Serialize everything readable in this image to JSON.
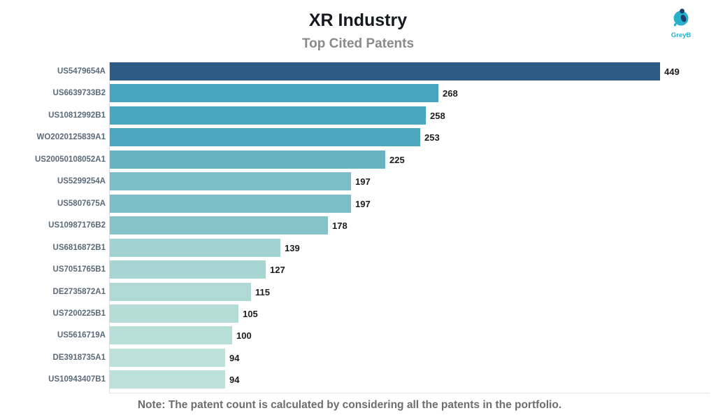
{
  "header": {
    "title": "XR Industry",
    "subtitle": "Top Cited Patents"
  },
  "logo": {
    "text": "GreyB",
    "teal": "#27b2ca",
    "navy": "#1d3f6d"
  },
  "note": "Note: The patent count is calculated by considering all the patents in the portfolio.",
  "chart_data": {
    "type": "bar",
    "orientation": "horizontal",
    "title": "XR Industry",
    "subtitle": "Top Cited Patents",
    "categories": [
      "US5479654A",
      "US6639733B2",
      "US10812992B1",
      "WO2020125839A1",
      "US20050108052A1",
      "US5299254A",
      "US5807675A",
      "US10987176B2",
      "US6816872B1",
      "US7051765B1",
      "DE2735872A1",
      "US7200225B1",
      "US5616719A",
      "DE3918735A1",
      "US10943407B1"
    ],
    "values": [
      449,
      268,
      258,
      253,
      225,
      197,
      197,
      178,
      139,
      127,
      115,
      105,
      100,
      94,
      94
    ],
    "bar_colors": [
      "#2d5a87",
      "#49a5bf",
      "#4ba6bf",
      "#4da7bf",
      "#68b3c2",
      "#7bbdc8",
      "#7bbdc8",
      "#85c3c9",
      "#9fd2d0",
      "#a7d6d2",
      "#afd9d4",
      "#b5dcd6",
      "#b8ded8",
      "#bce0da",
      "#bce0da"
    ],
    "xlabel": "",
    "ylabel": "",
    "xlim": [
      0,
      490
    ],
    "value_labels": true,
    "grid": false,
    "legend": false
  }
}
